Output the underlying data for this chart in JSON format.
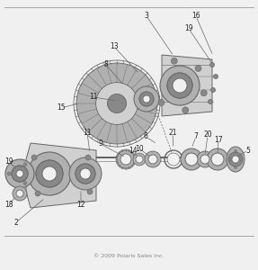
{
  "copyright": "© 2009 Polaris Sales Inc.",
  "bg_color": "#f0f0f0",
  "line_color": "#666666",
  "dark_color": "#444444",
  "label_fontsize": 5.5,
  "copyright_fontsize": 4.5,
  "label_color": "#222222",
  "comp_light": "#d0d0d0",
  "comp_mid": "#b0b0b0",
  "comp_dark": "#888888",
  "comp_darker": "#666666"
}
